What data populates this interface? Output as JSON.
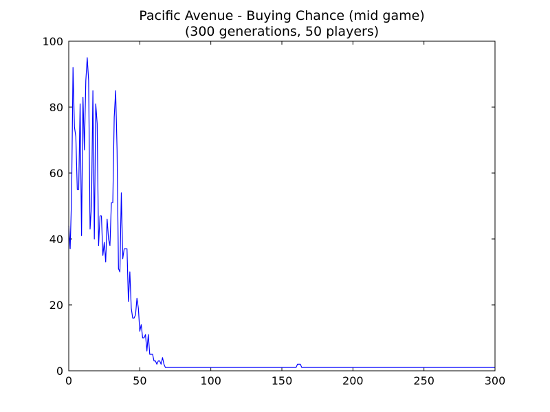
{
  "chart_data": {
    "type": "line",
    "title": "Pacific Avenue - Buying Chance (mid game)",
    "subtitle": "(300 generations, 50 players)",
    "xlabel": "",
    "ylabel": "",
    "xlim": [
      0,
      300
    ],
    "ylim": [
      0,
      100
    ],
    "xticks": [
      0,
      50,
      100,
      150,
      200,
      250,
      300
    ],
    "yticks": [
      0,
      20,
      40,
      60,
      80,
      100
    ],
    "grid": false,
    "legend": "none",
    "series": [
      {
        "color": "#0000ff",
        "x": [
          0,
          1,
          2,
          3,
          4,
          5,
          6,
          7,
          8,
          9,
          10,
          11,
          12,
          13,
          14,
          15,
          16,
          17,
          18,
          19,
          20,
          21,
          22,
          23,
          24,
          25,
          26,
          27,
          28,
          29,
          30,
          31,
          32,
          33,
          34,
          35,
          36,
          37,
          38,
          39,
          40,
          41,
          42,
          43,
          44,
          45,
          46,
          47,
          48,
          49,
          50,
          51,
          52,
          53,
          54,
          55,
          56,
          57,
          58,
          59,
          60,
          61,
          62,
          63,
          64,
          65,
          66,
          67,
          68,
          69,
          70,
          100,
          150,
          159,
          160,
          161,
          162,
          163,
          164,
          170,
          200,
          250,
          300
        ],
        "y": [
          44,
          37,
          53,
          92,
          74,
          71,
          55,
          55,
          81,
          41,
          83,
          67,
          88,
          95,
          88,
          43,
          50,
          85,
          40,
          81,
          75,
          38,
          47,
          47,
          35,
          39,
          33,
          46,
          40,
          38,
          51,
          51,
          77,
          85,
          67,
          31,
          30,
          54,
          34,
          37,
          37,
          37,
          21,
          30,
          19,
          16,
          16,
          17,
          22,
          19,
          12,
          14,
          10,
          10,
          11,
          6,
          11,
          5,
          5,
          5,
          3,
          3,
          2,
          3,
          3,
          2,
          4,
          2,
          1,
          1,
          1,
          1,
          1,
          1,
          1,
          2,
          2,
          2,
          1,
          1,
          1,
          1,
          1
        ]
      }
    ]
  }
}
